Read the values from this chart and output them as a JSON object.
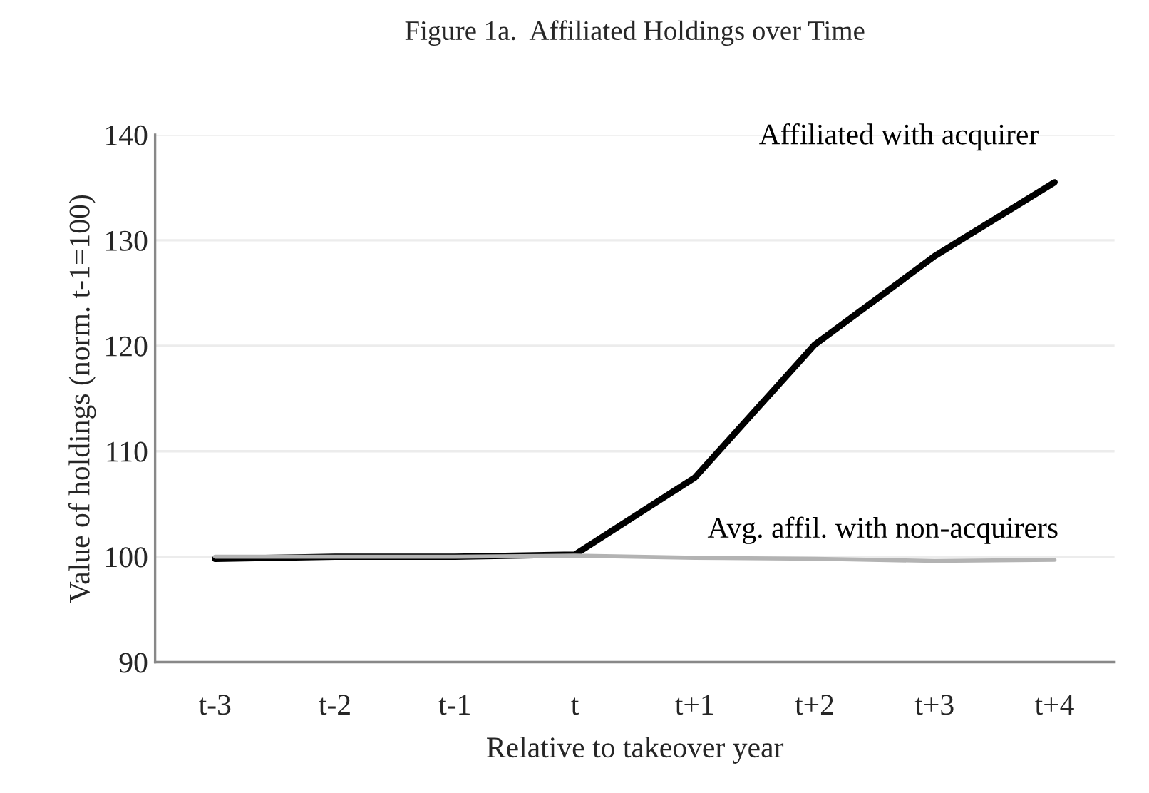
{
  "chart_data": {
    "type": "line",
    "title": "Figure 1a.  Affiliated Holdings over Time",
    "xlabel": "Relative to takeover year",
    "ylabel": "Value of holdings (norm. t-1=100)",
    "categories": [
      "t-3",
      "t-2",
      "t-1",
      "t",
      "t+1",
      "t+2",
      "t+3",
      "t+4"
    ],
    "series": [
      {
        "name": "Affiliated with acquirer",
        "color": "#000000",
        "values": [
          99.8,
          100,
          100,
          100.2,
          107.5,
          120.1,
          128.5,
          135.5
        ]
      },
      {
        "name": "Avg. affil. with non-acquirers",
        "color": "#b3b3b3",
        "values": [
          100,
          100,
          100,
          100.1,
          99.9,
          99.8,
          99.6,
          99.7
        ]
      }
    ],
    "ylim": [
      90,
      140
    ],
    "yticks": [
      90,
      100,
      110,
      120,
      130,
      140
    ],
    "grid": "y",
    "legend": false,
    "marker": "none",
    "line_style": "solid"
  }
}
